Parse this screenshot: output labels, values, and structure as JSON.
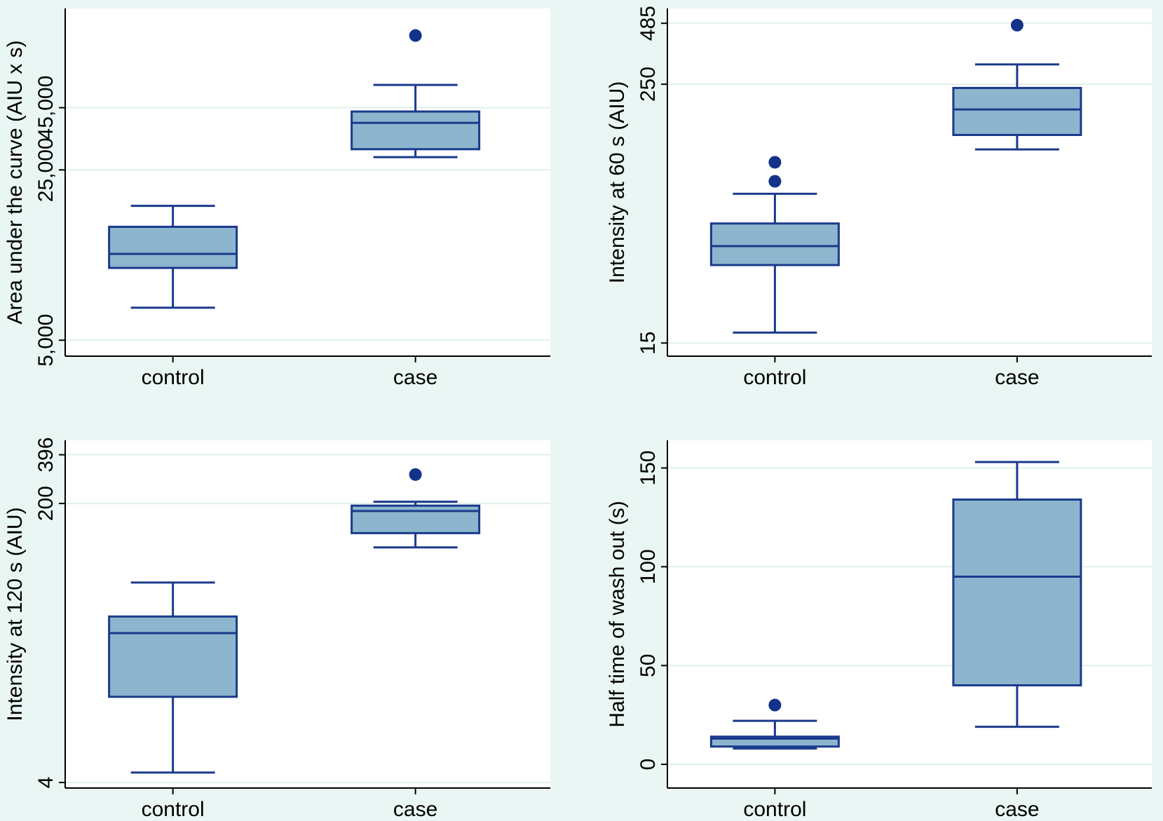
{
  "chart_data": [
    {
      "type": "box",
      "ylabel": "Area under the curve (AIU x s)",
      "scale": "log",
      "ylim": [
        4300,
        115000
      ],
      "yticks": [
        {
          "value": 5000,
          "label": "5,000"
        },
        {
          "value": 25000,
          "label": "25,000"
        },
        {
          "value": 45000,
          "label": "45,000"
        }
      ],
      "grid": true,
      "categories": [
        "control",
        "case"
      ],
      "boxes": [
        {
          "category": "control",
          "whisker_low": 6800,
          "q1": 9900,
          "median": 11300,
          "q3": 14600,
          "whisker_high": 17800,
          "outliers": []
        },
        {
          "category": "case",
          "whisker_low": 28200,
          "q1": 30400,
          "median": 39000,
          "q3": 43400,
          "whisker_high": 55800,
          "outliers": [
            89000
          ]
        }
      ]
    },
    {
      "type": "box",
      "ylabel": "Intensity at 60 s (AIU)",
      "scale": "log",
      "ylim": [
        13,
        570
      ],
      "yticks": [
        {
          "value": 15,
          "label": "15"
        },
        {
          "value": 250,
          "label": "250"
        },
        {
          "value": 485,
          "label": "485"
        }
      ],
      "grid": true,
      "categories": [
        "control",
        "case"
      ],
      "boxes": [
        {
          "category": "control",
          "whisker_low": 16.8,
          "q1": 35,
          "median": 43,
          "q3": 55,
          "whisker_high": 76,
          "outliers": [
            87,
            107
          ]
        },
        {
          "category": "case",
          "whisker_low": 123,
          "q1": 144,
          "median": 190,
          "q3": 240,
          "whisker_high": 310,
          "outliers": [
            475
          ]
        }
      ]
    },
    {
      "type": "box",
      "ylabel": "Intensity at 120 s (AIU)",
      "scale": "log",
      "ylim": [
        3.7,
        485
      ],
      "yticks": [
        {
          "value": 4,
          "label": "4"
        },
        {
          "value": 200,
          "label": "200"
        },
        {
          "value": 396,
          "label": "396"
        }
      ],
      "grid": true,
      "categories": [
        "control",
        "case"
      ],
      "boxes": [
        {
          "category": "control",
          "whisker_low": 4.6,
          "q1": 13.3,
          "median": 32.5,
          "q3": 41,
          "whisker_high": 66,
          "outliers": []
        },
        {
          "category": "case",
          "whisker_low": 108,
          "q1": 132,
          "median": 180,
          "q3": 194,
          "whisker_high": 205,
          "outliers": [
            300
          ]
        }
      ]
    },
    {
      "type": "box",
      "ylabel": "Half time of wash out (s)",
      "scale": "linear",
      "ylim": [
        -12,
        164
      ],
      "yticks": [
        {
          "value": 0,
          "label": "0"
        },
        {
          "value": 50,
          "label": "50"
        },
        {
          "value": 100,
          "label": "100"
        },
        {
          "value": 150,
          "label": "150"
        }
      ],
      "grid": true,
      "categories": [
        "control",
        "case"
      ],
      "boxes": [
        {
          "category": "control",
          "whisker_low": 8,
          "q1": 9,
          "median": 13,
          "q3": 14,
          "whisker_high": 22,
          "outliers": [
            30
          ]
        },
        {
          "category": "case",
          "whisker_low": 19,
          "q1": 40,
          "median": 95,
          "q3": 134,
          "whisker_high": 153,
          "outliers": []
        }
      ]
    }
  ],
  "colors": {
    "background": "#eaf6f4",
    "plot_background": "#ffffff",
    "box_fill": "#8db5cd",
    "line": "#1a3a8c",
    "marker": "#13338a",
    "grid": "#e1efec",
    "axis": "#000000"
  }
}
